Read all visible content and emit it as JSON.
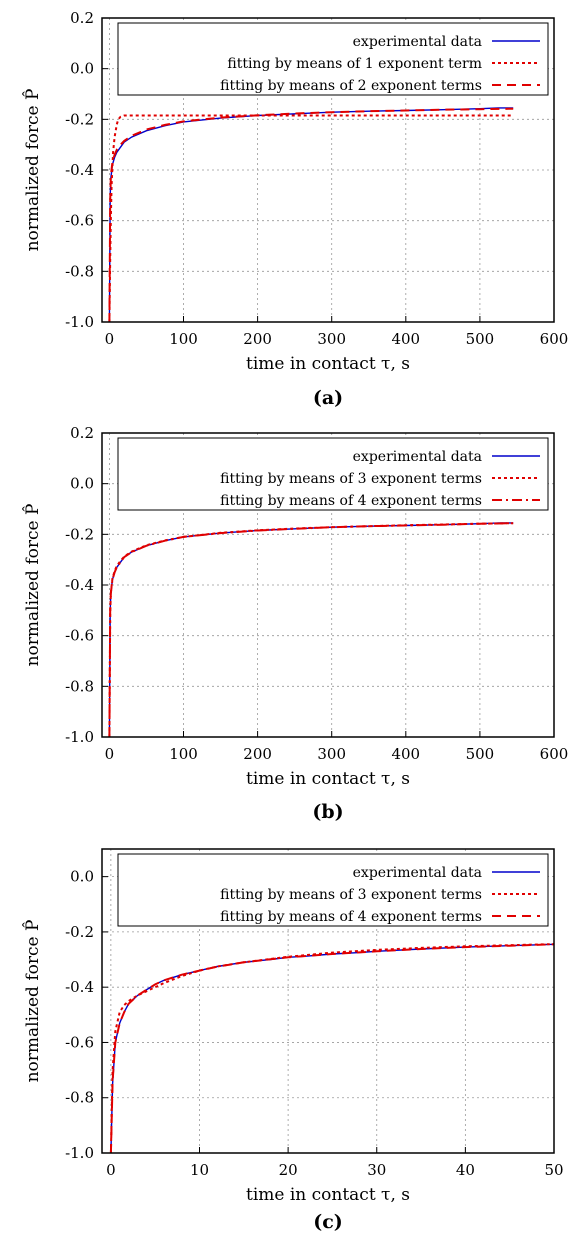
{
  "chart_data": [
    {
      "type": "line",
      "caption": "(a)",
      "xlabel": "time in contact τ, s",
      "ylabel": "normalized force P̂",
      "xlim": [
        -10,
        600
      ],
      "ylim": [
        -1.0,
        0.2
      ],
      "xticks": [
        "0",
        "100",
        "200",
        "300",
        "400",
        "500",
        "600"
      ],
      "yticks": [
        "-1.0",
        "-0.8",
        "-0.6",
        "-0.4",
        "-0.2",
        "0.0",
        "0.2"
      ],
      "grid": true,
      "legend_position": "top-right",
      "series": [
        {
          "name": "experimental data",
          "color": "#0000cc",
          "style": "solid",
          "x": [
            0,
            1,
            2,
            4,
            7,
            10,
            15,
            20,
            30,
            50,
            75,
            100,
            150,
            200,
            250,
            300,
            350,
            400,
            450,
            500,
            525,
            545
          ],
          "y": [
            -1.0,
            -0.5,
            -0.43,
            -0.38,
            -0.35,
            -0.33,
            -0.31,
            -0.29,
            -0.27,
            -0.245,
            -0.225,
            -0.21,
            -0.195,
            -0.185,
            -0.178,
            -0.172,
            -0.168,
            -0.165,
            -0.162,
            -0.158,
            -0.155,
            -0.155
          ]
        },
        {
          "name": "fitting by means of 1 exponent term",
          "color": "#e00000",
          "style": "dotted",
          "x": [
            0,
            1,
            2,
            3,
            5,
            7,
            10,
            12,
            15,
            20,
            50,
            100,
            200,
            300,
            400,
            545
          ],
          "y": [
            -1.0,
            -0.75,
            -0.58,
            -0.46,
            -0.33,
            -0.27,
            -0.22,
            -0.2,
            -0.19,
            -0.185,
            -0.185,
            -0.185,
            -0.185,
            -0.185,
            -0.185,
            -0.185
          ]
        },
        {
          "name": "fitting by means of 2 exponent terms",
          "color": "#e00000",
          "style": "dashed",
          "x": [
            0,
            1,
            2,
            4,
            7,
            10,
            15,
            20,
            30,
            50,
            75,
            100,
            150,
            200,
            250,
            300,
            350,
            400,
            450,
            500,
            545
          ],
          "y": [
            -1.0,
            -0.52,
            -0.42,
            -0.37,
            -0.34,
            -0.32,
            -0.3,
            -0.285,
            -0.265,
            -0.24,
            -0.222,
            -0.208,
            -0.193,
            -0.184,
            -0.177,
            -0.172,
            -0.168,
            -0.165,
            -0.162,
            -0.16,
            -0.158
          ]
        }
      ]
    },
    {
      "type": "line",
      "caption": "(b)",
      "xlabel": "time in contact τ, s",
      "ylabel": "normalized force P̂",
      "xlim": [
        -10,
        600
      ],
      "ylim": [
        -1.0,
        0.2
      ],
      "xticks": [
        "0",
        "100",
        "200",
        "300",
        "400",
        "500",
        "600"
      ],
      "yticks": [
        "-1.0",
        "-0.8",
        "-0.6",
        "-0.4",
        "-0.2",
        "0.0",
        "0.2"
      ],
      "grid": true,
      "legend_position": "top-right",
      "series": [
        {
          "name": "experimental data",
          "color": "#0000cc",
          "style": "solid",
          "x": [
            0,
            1,
            2,
            4,
            7,
            10,
            15,
            20,
            30,
            50,
            75,
            100,
            150,
            200,
            250,
            300,
            350,
            400,
            450,
            500,
            525,
            545
          ],
          "y": [
            -1.0,
            -0.5,
            -0.43,
            -0.38,
            -0.35,
            -0.33,
            -0.31,
            -0.29,
            -0.27,
            -0.245,
            -0.225,
            -0.21,
            -0.195,
            -0.185,
            -0.178,
            -0.172,
            -0.168,
            -0.165,
            -0.162,
            -0.158,
            -0.155,
            -0.155
          ]
        },
        {
          "name": "fitting by means of 3 exponent terms",
          "color": "#e00000",
          "style": "dotted",
          "x": [
            0,
            1,
            2,
            4,
            7,
            10,
            15,
            20,
            30,
            50,
            75,
            100,
            150,
            200,
            250,
            300,
            350,
            400,
            450,
            500,
            545
          ],
          "y": [
            -1.0,
            -0.51,
            -0.43,
            -0.375,
            -0.345,
            -0.325,
            -0.305,
            -0.288,
            -0.268,
            -0.243,
            -0.224,
            -0.21,
            -0.194,
            -0.184,
            -0.177,
            -0.172,
            -0.168,
            -0.164,
            -0.161,
            -0.158,
            -0.156
          ]
        },
        {
          "name": "fitting by means of 4 exponent terms",
          "color": "#e00000",
          "style": "dashdot",
          "x": [
            0,
            1,
            2,
            4,
            7,
            10,
            15,
            20,
            30,
            50,
            75,
            100,
            150,
            200,
            250,
            300,
            350,
            400,
            450,
            500,
            545
          ],
          "y": [
            -1.0,
            -0.5,
            -0.43,
            -0.38,
            -0.35,
            -0.33,
            -0.31,
            -0.29,
            -0.27,
            -0.245,
            -0.225,
            -0.21,
            -0.195,
            -0.185,
            -0.178,
            -0.172,
            -0.168,
            -0.165,
            -0.162,
            -0.158,
            -0.156
          ]
        }
      ]
    },
    {
      "type": "line",
      "caption": "(c)",
      "xlabel": "time in contact τ, s",
      "ylabel": "normalized force P̂",
      "xlim": [
        -1,
        50
      ],
      "ylim": [
        -1.0,
        0.1
      ],
      "xticks": [
        "0",
        "10",
        "20",
        "30",
        "40",
        "50"
      ],
      "yticks": [
        "-1.0",
        "-0.8",
        "-0.6",
        "-0.4",
        "-0.2",
        "0.0"
      ],
      "grid": true,
      "legend_position": "top-right",
      "series": [
        {
          "name": "experimental data",
          "color": "#0000cc",
          "style": "solid",
          "x": [
            0,
            0.2,
            0.5,
            1,
            1.5,
            2,
            3,
            4,
            5,
            6,
            8,
            10,
            12,
            15,
            18,
            20,
            22,
            25,
            28,
            30,
            35,
            40,
            45,
            50
          ],
          "y": [
            -1.0,
            -0.75,
            -0.6,
            -0.53,
            -0.49,
            -0.46,
            -0.43,
            -0.41,
            -0.39,
            -0.375,
            -0.355,
            -0.34,
            -0.325,
            -0.31,
            -0.3,
            -0.292,
            -0.288,
            -0.28,
            -0.275,
            -0.27,
            -0.262,
            -0.255,
            -0.25,
            -0.245
          ]
        },
        {
          "name": "fitting by means of 3 exponent terms",
          "color": "#e00000",
          "style": "dotted",
          "x": [
            0,
            0.2,
            0.5,
            1,
            1.5,
            2,
            3,
            4,
            5,
            6,
            8,
            10,
            12,
            15,
            20,
            25,
            30,
            35,
            40,
            45,
            50
          ],
          "y": [
            -1.0,
            -0.7,
            -0.56,
            -0.49,
            -0.465,
            -0.45,
            -0.43,
            -0.415,
            -0.4,
            -0.385,
            -0.36,
            -0.34,
            -0.325,
            -0.31,
            -0.29,
            -0.275,
            -0.265,
            -0.258,
            -0.252,
            -0.248,
            -0.244
          ]
        },
        {
          "name": "fitting by means of 4 exponent terms",
          "color": "#e00000",
          "style": "dashed",
          "x": [
            0,
            0.2,
            0.5,
            1,
            1.5,
            2,
            3,
            4,
            5,
            6,
            8,
            10,
            12,
            15,
            20,
            25,
            30,
            35,
            40,
            45,
            50
          ],
          "y": [
            -1.0,
            -0.74,
            -0.6,
            -0.53,
            -0.49,
            -0.46,
            -0.43,
            -0.41,
            -0.39,
            -0.375,
            -0.355,
            -0.34,
            -0.326,
            -0.31,
            -0.292,
            -0.28,
            -0.27,
            -0.262,
            -0.255,
            -0.25,
            -0.245
          ]
        }
      ]
    }
  ]
}
